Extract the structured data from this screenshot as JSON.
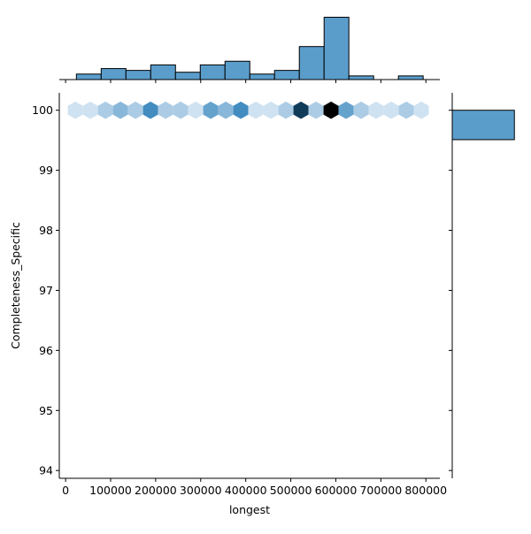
{
  "chart_data": [
    {
      "type": "hexbin",
      "xlabel": "longest",
      "ylabel": "Completeness_Specific",
      "x": [
        21600,
        55000,
        88400,
        121800,
        155200,
        188600,
        222000,
        255400,
        288800,
        322200,
        355600,
        389000,
        422400,
        455800,
        489200,
        522600,
        556000,
        589400,
        622800,
        656200,
        689600,
        723000,
        756400,
        789800
      ],
      "y": [
        100,
        100,
        100,
        100,
        100,
        100,
        100,
        100,
        100,
        100,
        100,
        100,
        100,
        100,
        100,
        100,
        100,
        100,
        100,
        100,
        100,
        100,
        100,
        100
      ],
      "values": [
        1,
        1,
        2,
        3,
        2,
        5,
        2,
        2,
        1,
        4,
        3,
        5,
        1,
        1,
        2,
        9,
        2,
        12,
        4,
        2,
        1,
        1,
        2,
        1
      ],
      "color_stops": [
        "#f2f7fd",
        "#1f77b4",
        "#000000"
      ],
      "xlim": [
        -14000,
        831000
      ],
      "ylim": [
        93.87,
        100.29
      ],
      "xticks": [
        0,
        100000,
        200000,
        300000,
        400000,
        500000,
        600000,
        700000,
        800000
      ],
      "yticks": [
        94,
        95,
        96,
        97,
        98,
        99,
        100
      ]
    },
    {
      "type": "histogram",
      "orientation": "vertical",
      "color": "#5a9dcb",
      "bins": [
        24000,
        79000,
        134000,
        189000,
        244000,
        299000,
        354000,
        409000,
        464000,
        519000,
        574000,
        629000,
        684000,
        739000,
        794000
      ],
      "values": [
        3,
        6,
        5,
        8,
        4,
        8,
        10,
        3,
        5,
        18,
        34,
        2,
        0,
        2
      ],
      "xlim": [
        -14000,
        831000
      ],
      "ylim": [
        0,
        41
      ]
    },
    {
      "type": "histogram",
      "orientation": "horizontal",
      "color": "#5a9dcb",
      "bins": [
        99.51,
        100.0
      ],
      "values": [
        108
      ],
      "xlim": [
        0,
        123
      ],
      "ylim": [
        93.87,
        100.29
      ]
    }
  ]
}
